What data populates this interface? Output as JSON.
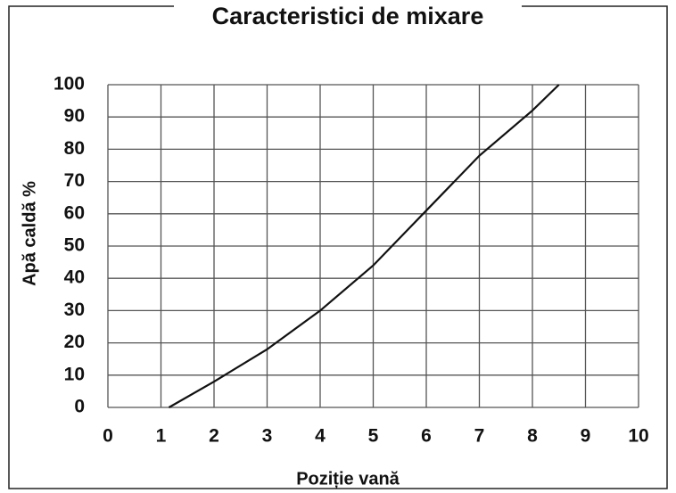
{
  "chart_data": {
    "type": "line",
    "title": "Caracteristici de mixare",
    "xlabel": "Poziție vană",
    "ylabel": "Apă caldă %",
    "x": [
      1.15,
      2,
      3,
      4,
      5,
      6,
      7,
      8,
      8.5
    ],
    "values": [
      0,
      8,
      18,
      30,
      44,
      61,
      78,
      92,
      100
    ],
    "color": "#111111",
    "xlim": [
      0,
      10
    ],
    "xticks": [
      0,
      1,
      2,
      3,
      4,
      5,
      6,
      7,
      8,
      9,
      10
    ],
    "ylim": [
      0,
      100
    ],
    "yticks": [
      0,
      10,
      20,
      30,
      40,
      50,
      60,
      70,
      80,
      90,
      100
    ],
    "grid": true
  }
}
